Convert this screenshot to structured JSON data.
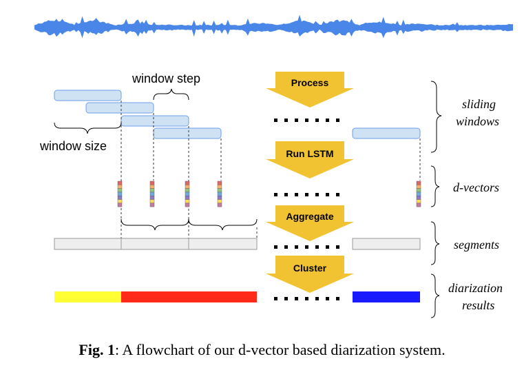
{
  "labels": {
    "window_step": "window step",
    "window_size": "window size"
  },
  "steps": [
    "Process",
    "Run LSTM",
    "Aggregate",
    "Cluster"
  ],
  "stages": {
    "sliding_windows": [
      "sliding",
      "windows"
    ],
    "d_vectors": "d-vectors",
    "segments": "segments",
    "diarization_results": [
      "diarization",
      "results"
    ]
  },
  "caption": {
    "prefix": "Fig. 1",
    "text": ": A flowchart of our d-vector based diarization system."
  },
  "colors": {
    "waveform": "#4a86e8",
    "window_fill": "#cfe2f3",
    "window_stroke": "#6d9eeb",
    "segment_fill": "#eeeeee",
    "segment_stroke": "#999999",
    "arrow": "#f1c232",
    "speaker_1": "#ffff33",
    "speaker_2": "#ff2a1a",
    "speaker_3": "#1a1aff",
    "dvector_cells": [
      "#e06666",
      "#f6b26b",
      "#93c47d",
      "#6fa8dc",
      "#8e7cc3",
      "#ffd966",
      "#c27ba0"
    ]
  }
}
